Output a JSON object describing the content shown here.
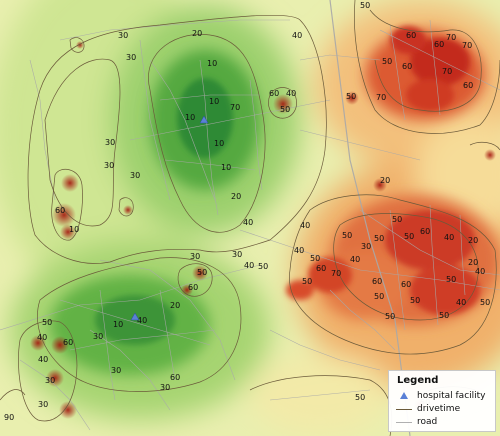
{
  "map": {
    "colors": {
      "background": "#e8efb0",
      "green_dark": "#2e8a34",
      "green_mid": "#6fbb4c",
      "yellow": "#f4f1b0",
      "orange": "#f2b470",
      "red": "#cc2a1e",
      "contour": "#6b5a3a",
      "road": "#a9a9a9",
      "hospital": "#5a80d6"
    },
    "contour_labels": [
      "30",
      "30",
      "20",
      "40",
      "50",
      "10",
      "10",
      "70",
      "10",
      "10",
      "10",
      "20",
      "60",
      "40",
      "50",
      "60",
      "60",
      "70",
      "70",
      "50",
      "60",
      "70",
      "60",
      "30",
      "30",
      "30",
      "30",
      "30",
      "40",
      "50",
      "60",
      "50",
      "70",
      "50",
      "40",
      "40",
      "30",
      "50",
      "50",
      "50",
      "60",
      "40",
      "20",
      "40",
      "60",
      "60",
      "50",
      "50",
      "40",
      "50",
      "20",
      "50",
      "50",
      "50",
      "50",
      "60",
      "60",
      "10",
      "10",
      "40",
      "30",
      "30",
      "50",
      "40",
      "60",
      "40",
      "30",
      "30",
      "90",
      "20",
      "30",
      "60",
      "50",
      "70",
      "20",
      "40",
      "40",
      "50",
      "50",
      "50",
      "40"
    ]
  },
  "legend": {
    "title": "Legend",
    "items": [
      {
        "label": "hospital facility",
        "symbol": "triangle"
      },
      {
        "label": "drivetime",
        "symbol": "line"
      },
      {
        "label": "road",
        "symbol": "line"
      }
    ]
  }
}
